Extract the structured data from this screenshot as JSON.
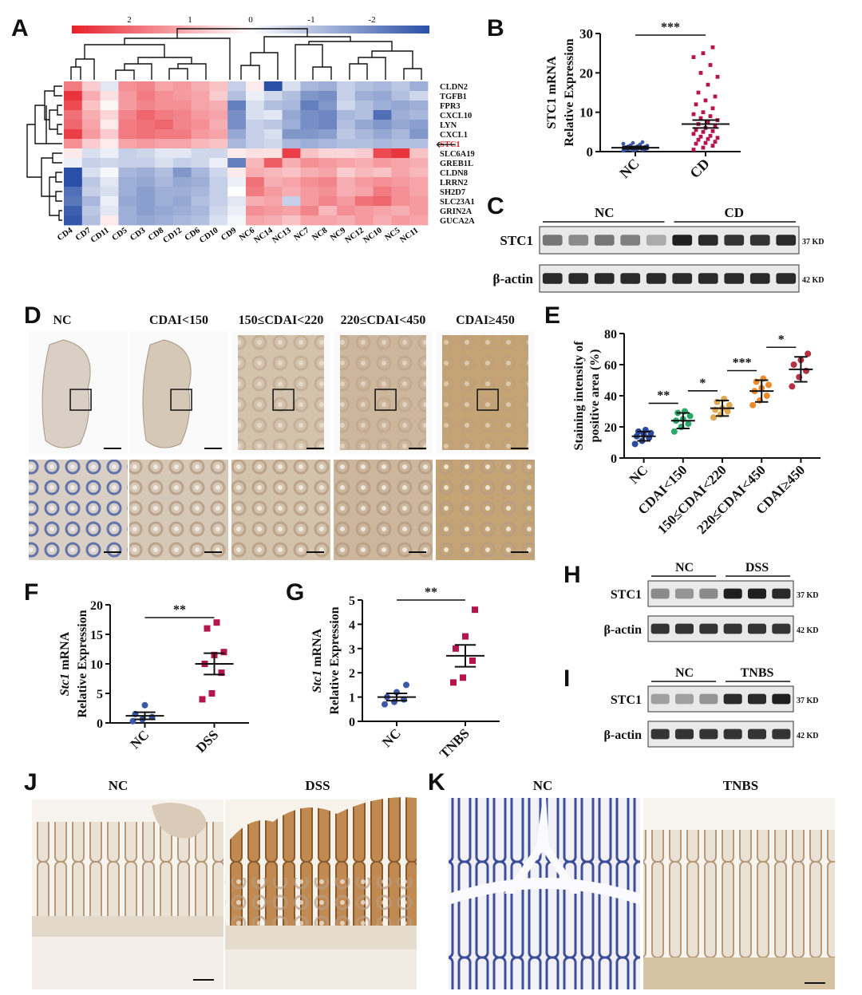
{
  "panel_labels": [
    "A",
    "B",
    "C",
    "D",
    "E",
    "F",
    "G",
    "H",
    "I",
    "J",
    "K"
  ],
  "panel_a": {
    "colorbar_ticks": [
      "2",
      "1",
      "0",
      "-1",
      "-2"
    ],
    "samples": [
      "CD4",
      "CD7",
      "CD11",
      "CD5",
      "CD3",
      "CD8",
      "CD12",
      "CD6",
      "CD10",
      "CD9",
      "NC6",
      "NC14",
      "NC13",
      "NC7",
      "NC8",
      "NC9",
      "NC12",
      "NC10",
      "NC5",
      "NC11"
    ],
    "genes": [
      "CLDN2",
      "TGFB1",
      "FPR3",
      "CXCL10",
      "LYN",
      "CXCL1",
      "STC1",
      "SLC6A19",
      "GREB1L",
      "CLDN8",
      "LRRN2",
      "SH2D7",
      "SLC23A1",
      "GRIN2A",
      "GUCA2A"
    ],
    "highlight_gene": "STC1",
    "highlight_color": "#e02020",
    "values": [
      [
        1.3,
        0.5,
        -0.3,
        1.1,
        1.2,
        0.9,
        1.0,
        0.8,
        0.6,
        -0.6,
        0.2,
        -2.2,
        -0.4,
        -0.9,
        -1.0,
        -0.6,
        -0.8,
        -0.9,
        -0.7,
        -1.0
      ],
      [
        2.0,
        0.8,
        0.3,
        1.0,
        1.3,
        1.1,
        1.0,
        0.9,
        0.5,
        -0.8,
        -0.2,
        -0.5,
        -0.8,
        -1.3,
        -1.4,
        -0.6,
        -1.0,
        -1.1,
        -0.8,
        -0.5
      ],
      [
        1.8,
        0.6,
        0.1,
        1.0,
        1.2,
        1.1,
        1.1,
        0.9,
        0.8,
        -1.6,
        -0.4,
        -0.8,
        -0.9,
        -1.6,
        -1.3,
        -0.5,
        -0.8,
        -1.0,
        -1.1,
        -1.0
      ],
      [
        1.4,
        0.8,
        0.4,
        1.2,
        1.5,
        1.3,
        1.2,
        1.0,
        0.9,
        -1.4,
        -0.4,
        -0.3,
        -1.1,
        -1.4,
        -1.5,
        -0.9,
        -0.8,
        -1.8,
        -1.0,
        -0.9
      ],
      [
        1.5,
        0.9,
        0.2,
        1.3,
        1.4,
        1.5,
        1.2,
        1.1,
        0.8,
        -1.4,
        -0.6,
        -0.7,
        -1.0,
        -1.4,
        -1.5,
        -0.8,
        -1.1,
        -1.3,
        -1.1,
        -1.2
      ],
      [
        1.9,
        1.0,
        0.5,
        1.3,
        1.4,
        1.3,
        1.3,
        1.0,
        0.9,
        -1.1,
        -0.6,
        -0.4,
        -1.3,
        -1.3,
        -1.2,
        -0.7,
        -0.9,
        -1.1,
        -0.9,
        -1.3
      ],
      [
        1.1,
        0.5,
        0.2,
        0.9,
        1.0,
        0.9,
        0.9,
        0.7,
        0.6,
        -0.9,
        -0.6,
        -0.5,
        -0.9,
        -1.0,
        -0.9,
        -0.8,
        -0.8,
        -0.9,
        -0.8,
        -0.8
      ],
      [
        0.2,
        -0.4,
        -0.2,
        -0.6,
        -0.5,
        -0.3,
        -0.3,
        -0.5,
        -0.5,
        0.2,
        0.3,
        0.3,
        1.9,
        0.6,
        0.4,
        0.4,
        0.5,
        1.8,
        2.0,
        0.6
      ],
      [
        -0.2,
        -0.6,
        -0.5,
        -0.6,
        -0.6,
        -0.4,
        -0.6,
        -0.5,
        -0.2,
        -1.6,
        0.7,
        1.6,
        0.8,
        1.1,
        1.0,
        0.9,
        0.8,
        1.0,
        0.9,
        0.8
      ],
      [
        -2.2,
        -0.4,
        -0.1,
        -0.9,
        -1.0,
        -0.8,
        -1.3,
        -0.9,
        -0.5,
        0.2,
        0.8,
        0.7,
        0.6,
        0.8,
        0.9,
        0.5,
        0.7,
        0.6,
        0.9,
        0.7
      ],
      [
        -2.2,
        -0.7,
        -0.3,
        -1.0,
        -1.1,
        -0.9,
        -1.1,
        -1.0,
        -0.6,
        -0.2,
        1.4,
        0.8,
        0.9,
        1.1,
        1.2,
        0.8,
        1.0,
        1.1,
        1.0,
        0.9
      ],
      [
        -1.8,
        -0.6,
        -0.4,
        -1.0,
        -1.2,
        -1.0,
        -1.0,
        -0.9,
        -0.6,
        0.0,
        1.3,
        1.0,
        0.8,
        1.0,
        1.1,
        0.8,
        0.9,
        1.3,
        1.1,
        0.9
      ],
      [
        -1.7,
        -0.9,
        -0.2,
        -1.1,
        -1.2,
        -1.0,
        -1.1,
        -0.8,
        -0.6,
        -0.3,
        0.8,
        0.9,
        -0.6,
        1.0,
        1.2,
        1.0,
        1.4,
        1.5,
        1.1,
        1.0
      ],
      [
        -2.0,
        -0.7,
        -0.3,
        -1.0,
        -1.2,
        -1.1,
        -1.0,
        -0.9,
        -0.5,
        -0.2,
        1.1,
        1.0,
        0.9,
        1.2,
        0.7,
        1.1,
        1.0,
        0.9,
        0.8,
        1.0
      ],
      [
        -2.1,
        -0.8,
        0.2,
        -1.0,
        -1.1,
        -1.0,
        -0.9,
        -0.8,
        -0.4,
        -0.1,
        0.9,
        0.8,
        0.6,
        0.9,
        0.9,
        0.8,
        1.0,
        0.8,
        1.0,
        0.9
      ]
    ]
  },
  "chart_data": [
    {
      "panel": "B",
      "type": "scatter",
      "categories": [
        "NC",
        "CD"
      ],
      "ylabel": [
        "STC1 mRNA",
        "Relative Expression"
      ],
      "ylim": [
        0,
        30
      ],
      "yticks": [
        0,
        10,
        20,
        30
      ],
      "significance": "***",
      "colors": [
        "#3a57a8",
        "#b5144d"
      ],
      "means": [
        1.0,
        7.0
      ],
      "sems": [
        0.3,
        1.0
      ],
      "points": [
        [
          0.2,
          0.3,
          0.4,
          0.5,
          0.5,
          0.6,
          0.6,
          0.7,
          0.8,
          0.8,
          0.9,
          0.9,
          1.0,
          1.0,
          1.1,
          1.1,
          1.2,
          1.3,
          1.4,
          1.5,
          1.6,
          1.8,
          2.0,
          2.2,
          2.4
        ],
        [
          0.5,
          1.0,
          1.5,
          2.0,
          2.2,
          2.5,
          3.0,
          3.2,
          3.5,
          3.8,
          4.0,
          4.5,
          5.0,
          5.2,
          5.5,
          6.0,
          6.5,
          7.0,
          7.5,
          8.0,
          8.5,
          9.0,
          9.5,
          10.0,
          11.0,
          12.0,
          13.0,
          14.0,
          15.0,
          17.0,
          19.0,
          20.0,
          22.0,
          24.0,
          25.0,
          26.5
        ]
      ]
    },
    {
      "panel": "E",
      "type": "scatter",
      "categories": [
        "NC",
        "CDAI<150",
        "150≤CDAI<220",
        "220≤CDAI<450",
        "CDAI≥450"
      ],
      "ylabel": [
        "Staining intensity of",
        "positive area (%)"
      ],
      "ylim": [
        0,
        80
      ],
      "yticks": [
        0,
        20,
        40,
        60,
        80
      ],
      "colors": [
        "#2b4a9e",
        "#2aa86a",
        "#e0a850",
        "#ee8a2a",
        "#b53040"
      ],
      "means": [
        14,
        24,
        32,
        43,
        57
      ],
      "sds": [
        3,
        5,
        5,
        7,
        8
      ],
      "points": [
        [
          9,
          11,
          13,
          14,
          15,
          16,
          17,
          18
        ],
        [
          17,
          20,
          22,
          24,
          25,
          27,
          29,
          30
        ],
        [
          26,
          28,
          30,
          31,
          32,
          34,
          36,
          38
        ],
        [
          34,
          37,
          40,
          43,
          45,
          47,
          49,
          51
        ],
        [
          46,
          52,
          56,
          60,
          63,
          67
        ]
      ],
      "comparisons": [
        {
          "pair": [
            0,
            1
          ],
          "label": "**"
        },
        {
          "pair": [
            1,
            2
          ],
          "label": "*"
        },
        {
          "pair": [
            2,
            3
          ],
          "label": "***"
        },
        {
          "pair": [
            3,
            4
          ],
          "label": "*"
        }
      ]
    },
    {
      "panel": "F",
      "type": "scatter",
      "categories": [
        "NC",
        "DSS"
      ],
      "ylabel_gene": "Stc1",
      "ylabel_rest": " mRNA",
      "ylabel2": "Relative Expression",
      "ylim": [
        0,
        20
      ],
      "yticks": [
        0,
        5,
        10,
        15,
        20
      ],
      "significance": "**",
      "colors": [
        "#3a57a8",
        "#b5144d"
      ],
      "means": [
        1.2,
        10.0
      ],
      "sems": [
        0.6,
        1.8
      ],
      "points": [
        [
          0.3,
          0.6,
          1.0,
          1.5,
          3.0
        ],
        [
          4.0,
          5.0,
          8.5,
          10.0,
          11.5,
          12.0,
          16.0,
          17.0
        ]
      ]
    },
    {
      "panel": "G",
      "type": "scatter",
      "categories": [
        "NC",
        "TNBS"
      ],
      "ylabel_gene": "Stc1",
      "ylabel_rest": " mRNA",
      "ylabel2": "Relative Expression",
      "ylim": [
        0,
        5
      ],
      "yticks": [
        0,
        1,
        2,
        3,
        4,
        5
      ],
      "significance": "**",
      "colors": [
        "#3a57a8",
        "#b5144d"
      ],
      "means": [
        1.0,
        2.7
      ],
      "sems": [
        0.15,
        0.45
      ],
      "points": [
        [
          0.7,
          0.8,
          0.9,
          1.0,
          1.2,
          1.5
        ],
        [
          1.6,
          1.8,
          2.5,
          3.0,
          3.5,
          4.6
        ]
      ]
    }
  ],
  "panel_c": {
    "groups": [
      "NC",
      "CD"
    ],
    "rows": [
      {
        "label": "STC1",
        "kd": "37 KD",
        "intensities": [
          0.55,
          0.45,
          0.55,
          0.5,
          0.3,
          0.95,
          0.9,
          0.85,
          0.85,
          0.9
        ]
      },
      {
        "label": "β-actin",
        "kd": "42 KD",
        "intensities": [
          0.9,
          0.9,
          0.9,
          0.9,
          0.9,
          0.9,
          0.9,
          0.9,
          0.9,
          0.9
        ]
      }
    ]
  },
  "panel_h": {
    "groups": [
      "NC",
      "DSS"
    ],
    "rows": [
      {
        "label": "STC1",
        "kd": "37 KD",
        "intensities": [
          0.45,
          0.4,
          0.45,
          0.95,
          0.95,
          0.9
        ]
      },
      {
        "label": "β-actin",
        "kd": "42 KD",
        "intensities": [
          0.85,
          0.85,
          0.85,
          0.85,
          0.85,
          0.85
        ]
      }
    ]
  },
  "panel_i": {
    "groups": [
      "NC",
      "TNBS"
    ],
    "rows": [
      {
        "label": "STC1",
        "kd": "37 KD",
        "intensities": [
          0.35,
          0.35,
          0.4,
          0.9,
          0.9,
          0.95
        ]
      },
      {
        "label": "β-actin",
        "kd": "42 KD",
        "intensities": [
          0.85,
          0.85,
          0.85,
          0.85,
          0.85,
          0.85
        ]
      }
    ]
  },
  "panel_d": {
    "columns": [
      "NC",
      "CDAI<150",
      "150≤CDAI<220",
      "220≤CDAI<450",
      "CDAI≥450"
    ],
    "tissue_colors": [
      "#d9cfc4",
      "#d6c8b6",
      "#d3c3ad",
      "#cdb79c",
      "#c4a474"
    ]
  },
  "panel_j": {
    "columns": [
      "NC",
      "DSS"
    ]
  },
  "panel_k": {
    "columns": [
      "NC",
      "TNBS"
    ]
  }
}
